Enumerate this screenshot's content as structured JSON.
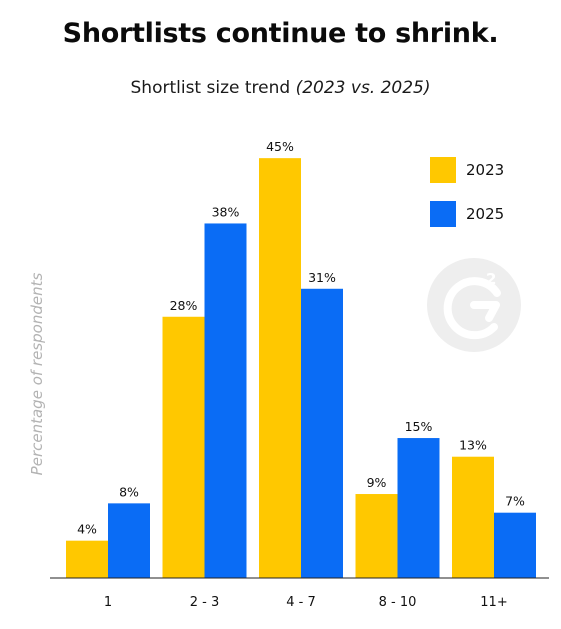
{
  "title": "Shortlists continue to shrink.",
  "subtitle_main": "Shortlist size trend",
  "subtitle_paren": "(2023 vs. 2025)",
  "chart_data": {
    "type": "bar",
    "categories": [
      "1",
      "2 - 3",
      "4 - 7",
      "8 - 10",
      "11+"
    ],
    "series": [
      {
        "name": "2023",
        "color": "#FFC800",
        "values": [
          4,
          28,
          45,
          9,
          13
        ],
        "labels": [
          "4%",
          "28%",
          "45%",
          "9%",
          "13%"
        ]
      },
      {
        "name": "2025",
        "color": "#0A6CF5",
        "values": [
          8,
          38,
          31,
          15,
          7
        ],
        "labels": [
          "8%",
          "38%",
          "31%",
          "15%",
          "7%"
        ]
      }
    ],
    "ylabel": "Percentage of respondents",
    "ylim": [
      0,
      50
    ],
    "legend_position": "top-right",
    "grid": false
  },
  "watermark": {
    "icon": "g2-logo-icon",
    "color": "#eeeeee"
  }
}
